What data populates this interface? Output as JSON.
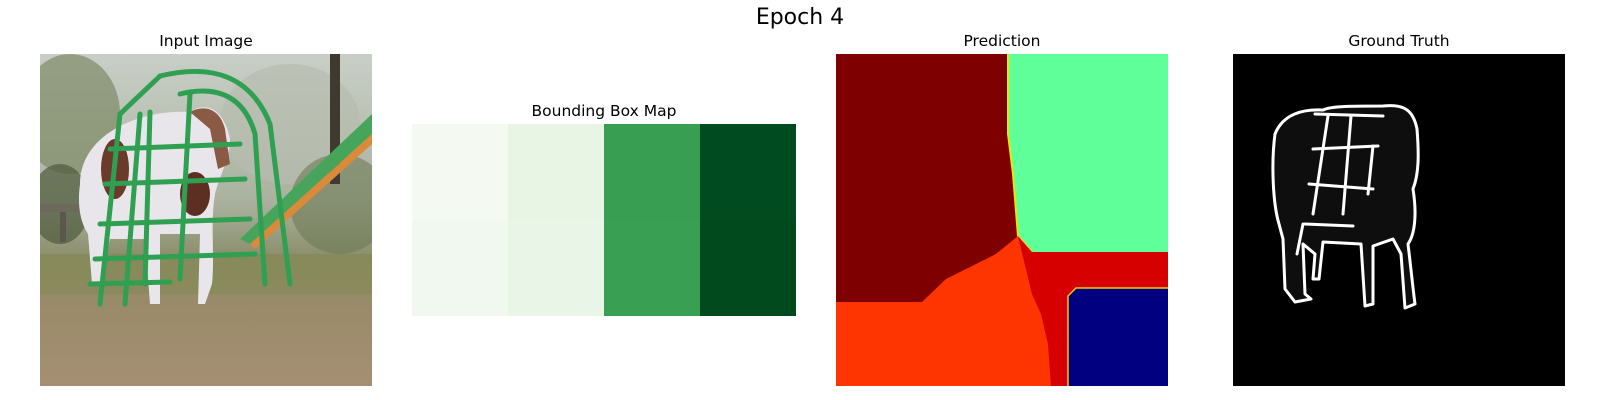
{
  "figure": {
    "title": "Epoch 4"
  },
  "panels": {
    "input": {
      "title": "Input Image"
    },
    "bbox": {
      "title": "Bounding Box Map",
      "colormap": "Greens",
      "column_colors": [
        "#f2f9f1",
        "#e8f5e5",
        "#379e52",
        "#004b1f"
      ]
    },
    "prediction": {
      "title": "Prediction",
      "colormap": "jet",
      "region_colors": {
        "dark_red": "#7f0000",
        "green": "#5fff9a",
        "red": "#d60000",
        "orange_red": "#ff3500",
        "navy": "#000080"
      }
    },
    "ground_truth": {
      "title": "Ground Truth",
      "background": "#000000",
      "outline": "#ffffff",
      "fill": "#0e0e0e"
    }
  }
}
